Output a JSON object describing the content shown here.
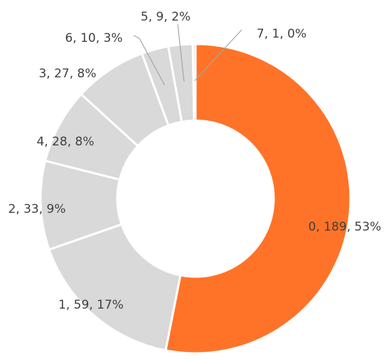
{
  "chart_data": {
    "type": "pie",
    "donut": true,
    "title": "",
    "categories": [
      "0",
      "1",
      "2",
      "4",
      "3",
      "6",
      "5",
      "7"
    ],
    "values": [
      189,
      59,
      33,
      28,
      27,
      10,
      9,
      1
    ],
    "percents": [
      53,
      17,
      9,
      8,
      8,
      3,
      2,
      0
    ],
    "labels": [
      "0, 189, 53%",
      "1, 59, 17%",
      "2, 33, 9%",
      "4, 28, 8%",
      "3, 27, 8%",
      "6, 10, 3%",
      "5, 9, 2%",
      "7, 1, 0%"
    ],
    "colors": [
      "#FF7328",
      "#D9D9D9",
      "#D9D9D9",
      "#D9D9D9",
      "#D9D9D9",
      "#D9D9D9",
      "#D9D9D9",
      "#D9D9D9"
    ],
    "legend": "none"
  }
}
